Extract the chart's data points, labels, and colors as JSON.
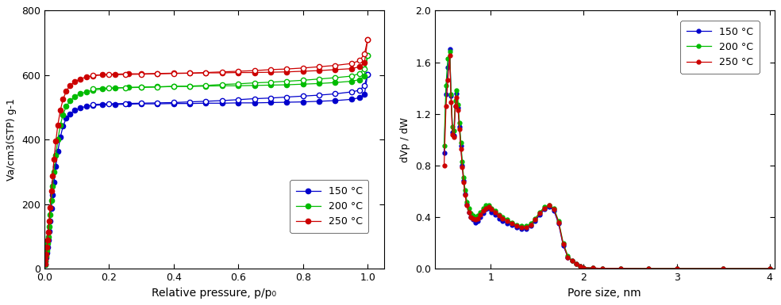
{
  "left": {
    "xlabel": "Relative pressure, p/p₀",
    "ylabel": "Va/cm3(STP) g-1",
    "ylim": [
      0,
      800
    ],
    "xlim": [
      0.0,
      1.05
    ],
    "yticks": [
      0,
      200,
      400,
      600,
      800
    ],
    "xticks": [
      0.0,
      0.2,
      0.4,
      0.6,
      0.8,
      1.0
    ],
    "legend_labels": [
      "150 °C",
      "200 °C",
      "250 °C"
    ],
    "colors": [
      "#0000cc",
      "#00bb00",
      "#cc0000"
    ],
    "series": {
      "150_ads": {
        "x": [
          0.002,
          0.004,
          0.006,
          0.008,
          0.01,
          0.012,
          0.015,
          0.018,
          0.022,
          0.026,
          0.03,
          0.036,
          0.042,
          0.05,
          0.058,
          0.068,
          0.08,
          0.095,
          0.11,
          0.13,
          0.15,
          0.18,
          0.22,
          0.26,
          0.3,
          0.35,
          0.4,
          0.45,
          0.5,
          0.55,
          0.6,
          0.65,
          0.7,
          0.75,
          0.8,
          0.85,
          0.9,
          0.95,
          0.975,
          0.99,
          1.0
        ],
        "y": [
          12,
          22,
          35,
          50,
          68,
          88,
          115,
          148,
          188,
          228,
          268,
          318,
          365,
          408,
          442,
          466,
          480,
          491,
          498,
          503,
          506,
          508,
          509,
          510,
          511,
          511,
          512,
          512,
          513,
          513,
          514,
          514,
          515,
          516,
          517,
          519,
          521,
          525,
          530,
          540,
          603
        ]
      },
      "150_des": {
        "x": [
          1.0,
          0.99,
          0.975,
          0.95,
          0.9,
          0.85,
          0.8,
          0.75,
          0.7,
          0.65,
          0.6,
          0.55,
          0.5,
          0.45,
          0.4,
          0.35,
          0.3,
          0.25,
          0.2,
          0.15
        ],
        "y": [
          603,
          568,
          553,
          548,
          542,
          538,
          535,
          532,
          529,
          527,
          524,
          521,
          519,
          517,
          515,
          514,
          513,
          512,
          511,
          509
        ]
      },
      "200_ads": {
        "x": [
          0.002,
          0.004,
          0.006,
          0.008,
          0.01,
          0.012,
          0.015,
          0.018,
          0.022,
          0.026,
          0.03,
          0.036,
          0.042,
          0.05,
          0.058,
          0.068,
          0.08,
          0.095,
          0.11,
          0.13,
          0.15,
          0.18,
          0.22,
          0.26,
          0.3,
          0.35,
          0.4,
          0.45,
          0.5,
          0.55,
          0.6,
          0.65,
          0.7,
          0.75,
          0.8,
          0.85,
          0.9,
          0.95,
          0.975,
          0.99,
          1.0
        ],
        "y": [
          14,
          26,
          40,
          58,
          78,
          100,
          130,
          168,
          212,
          255,
          300,
          352,
          400,
          446,
          478,
          503,
          520,
          534,
          542,
          548,
          553,
          557,
          560,
          562,
          563,
          564,
          565,
          565,
          566,
          567,
          567,
          568,
          569,
          570,
          572,
          574,
          577,
          581,
          586,
          598,
          660
        ]
      },
      "200_des": {
        "x": [
          1.0,
          0.99,
          0.975,
          0.95,
          0.9,
          0.85,
          0.8,
          0.75,
          0.7,
          0.65,
          0.6,
          0.55,
          0.5,
          0.45,
          0.4,
          0.35,
          0.3,
          0.25,
          0.2,
          0.15
        ],
        "y": [
          660,
          620,
          605,
          597,
          592,
          588,
          584,
          581,
          578,
          576,
          573,
          571,
          568,
          566,
          565,
          563,
          562,
          561,
          560,
          558
        ]
      },
      "250_ads": {
        "x": [
          0.002,
          0.004,
          0.006,
          0.008,
          0.01,
          0.012,
          0.015,
          0.018,
          0.022,
          0.026,
          0.03,
          0.036,
          0.042,
          0.05,
          0.058,
          0.068,
          0.08,
          0.095,
          0.11,
          0.13,
          0.15,
          0.18,
          0.22,
          0.26,
          0.3,
          0.35,
          0.4,
          0.45,
          0.5,
          0.55,
          0.6,
          0.65,
          0.7,
          0.75,
          0.8,
          0.85,
          0.9,
          0.95,
          0.975,
          0.99,
          1.0
        ],
        "y": [
          16,
          30,
          46,
          66,
          88,
          114,
          148,
          190,
          240,
          288,
          340,
          396,
          446,
          492,
          525,
          550,
          568,
          580,
          588,
          594,
          598,
          601,
          603,
          604,
          604,
          605,
          606,
          606,
          607,
          607,
          608,
          608,
          609,
          610,
          612,
          614,
          617,
          620,
          626,
          638,
          710
        ]
      },
      "250_des": {
        "x": [
          1.0,
          0.99,
          0.975,
          0.95,
          0.9,
          0.85,
          0.8,
          0.75,
          0.7,
          0.65,
          0.6,
          0.55,
          0.5,
          0.45,
          0.4,
          0.35,
          0.3,
          0.25,
          0.2,
          0.15
        ],
        "y": [
          710,
          665,
          645,
          636,
          630,
          626,
          622,
          619,
          617,
          614,
          612,
          610,
          608,
          606,
          605,
          604,
          603,
          602,
          601,
          600
        ]
      }
    }
  },
  "right": {
    "xlabel": "Pore size, nm",
    "ylabel": "dVp / dW",
    "ylim": [
      0.0,
      2.0
    ],
    "xlim": [
      0.4,
      4.05
    ],
    "yticks": [
      0.0,
      0.4,
      0.8,
      1.2,
      1.6,
      2.0
    ],
    "xticks": [
      1,
      2,
      3,
      4
    ],
    "legend_labels": [
      "150 °C",
      "200 °C",
      "250 °C"
    ],
    "colors": [
      "#0000cc",
      "#00bb00",
      "#cc0000"
    ],
    "series": {
      "150": {
        "x": [
          0.5,
          0.52,
          0.54,
          0.56,
          0.575,
          0.59,
          0.605,
          0.62,
          0.635,
          0.65,
          0.665,
          0.68,
          0.695,
          0.71,
          0.725,
          0.745,
          0.765,
          0.785,
          0.81,
          0.835,
          0.86,
          0.89,
          0.92,
          0.95,
          0.98,
          1.01,
          1.05,
          1.09,
          1.13,
          1.18,
          1.23,
          1.28,
          1.33,
          1.38,
          1.43,
          1.48,
          1.53,
          1.58,
          1.63,
          1.68,
          1.73,
          1.78,
          1.83,
          1.88,
          1.92,
          1.96,
          2.0,
          2.1,
          2.2,
          2.4,
          2.7,
          3.0,
          3.5,
          4.0
        ],
        "y": [
          0.9,
          1.35,
          1.56,
          1.7,
          1.34,
          1.06,
          1.03,
          1.26,
          1.36,
          1.25,
          1.1,
          0.95,
          0.8,
          0.68,
          0.58,
          0.5,
          0.44,
          0.4,
          0.38,
          0.36,
          0.37,
          0.4,
          0.43,
          0.46,
          0.47,
          0.44,
          0.42,
          0.39,
          0.37,
          0.35,
          0.34,
          0.32,
          0.31,
          0.31,
          0.33,
          0.37,
          0.42,
          0.46,
          0.48,
          0.45,
          0.35,
          0.18,
          0.09,
          0.06,
          0.04,
          0.02,
          0.01,
          0.005,
          0.003,
          0.002,
          0.001,
          0.001,
          0.001,
          0.001
        ]
      },
      "200": {
        "x": [
          0.5,
          0.52,
          0.54,
          0.56,
          0.575,
          0.59,
          0.605,
          0.62,
          0.635,
          0.65,
          0.665,
          0.68,
          0.695,
          0.71,
          0.725,
          0.745,
          0.765,
          0.785,
          0.81,
          0.835,
          0.86,
          0.89,
          0.92,
          0.95,
          0.98,
          1.01,
          1.05,
          1.09,
          1.13,
          1.18,
          1.23,
          1.28,
          1.33,
          1.38,
          1.43,
          1.48,
          1.53,
          1.58,
          1.63,
          1.68,
          1.73,
          1.78,
          1.83,
          1.88,
          1.92,
          1.96,
          2.0,
          2.1,
          2.2,
          2.4,
          2.7,
          3.0,
          3.5,
          4.0
        ],
        "y": [
          0.95,
          1.42,
          1.63,
          1.68,
          1.35,
          1.1,
          1.07,
          1.3,
          1.38,
          1.27,
          1.13,
          0.98,
          0.83,
          0.71,
          0.61,
          0.52,
          0.47,
          0.43,
          0.41,
          0.4,
          0.41,
          0.44,
          0.47,
          0.49,
          0.49,
          0.47,
          0.45,
          0.42,
          0.4,
          0.38,
          0.36,
          0.34,
          0.33,
          0.33,
          0.35,
          0.39,
          0.44,
          0.48,
          0.49,
          0.47,
          0.37,
          0.2,
          0.1,
          0.06,
          0.04,
          0.02,
          0.01,
          0.005,
          0.003,
          0.002,
          0.001,
          0.001,
          0.001,
          0.001
        ]
      },
      "250": {
        "x": [
          0.5,
          0.52,
          0.54,
          0.56,
          0.575,
          0.59,
          0.605,
          0.62,
          0.635,
          0.65,
          0.665,
          0.68,
          0.695,
          0.71,
          0.725,
          0.745,
          0.765,
          0.785,
          0.81,
          0.835,
          0.86,
          0.89,
          0.92,
          0.95,
          0.98,
          1.01,
          1.05,
          1.09,
          1.13,
          1.18,
          1.23,
          1.28,
          1.33,
          1.38,
          1.43,
          1.48,
          1.53,
          1.58,
          1.63,
          1.68,
          1.73,
          1.78,
          1.83,
          1.88,
          1.92,
          1.96,
          2.0,
          2.1,
          2.2,
          2.4,
          2.7,
          3.0,
          3.5,
          4.0
        ],
        "y": [
          0.8,
          1.26,
          1.46,
          1.65,
          1.29,
          1.04,
          1.02,
          1.26,
          1.33,
          1.23,
          1.08,
          0.93,
          0.79,
          0.67,
          0.57,
          0.49,
          0.44,
          0.4,
          0.39,
          0.38,
          0.39,
          0.42,
          0.45,
          0.47,
          0.48,
          0.46,
          0.44,
          0.41,
          0.39,
          0.37,
          0.35,
          0.33,
          0.32,
          0.32,
          0.34,
          0.38,
          0.43,
          0.47,
          0.49,
          0.46,
          0.36,
          0.19,
          0.09,
          0.06,
          0.04,
          0.02,
          0.01,
          0.005,
          0.003,
          0.002,
          0.001,
          0.001,
          0.001,
          0.001
        ]
      }
    }
  }
}
